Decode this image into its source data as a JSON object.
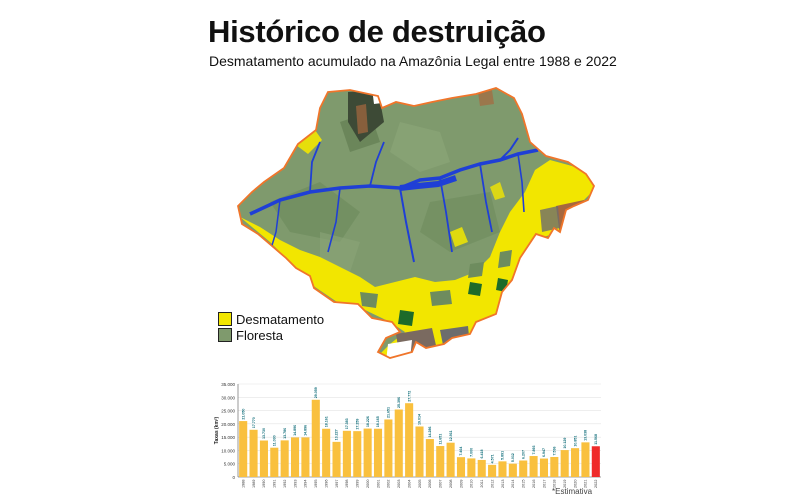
{
  "title": "Histórico de destruição",
  "subtitle": "Desmatamento acumulado na Amazônia Legal entre 1988 e 2022",
  "map": {
    "legend": [
      {
        "label": "Desmatamento",
        "color": "#f2e600"
      },
      {
        "label": "Floresta",
        "color": "#7f9a6d"
      }
    ],
    "colors": {
      "forest": "#7f9a6d",
      "deforestation": "#f2e600",
      "border": "#f0752a",
      "river": "#1f3fd6",
      "non_forest": "#a7683e"
    }
  },
  "chart_data": {
    "type": "bar",
    "ylabel": "Taxas (km²)",
    "ylim": [
      0,
      35000
    ],
    "yticks": [
      "0",
      "5.000",
      "10.000",
      "15.000",
      "20.000",
      "25.000",
      "30.000",
      "35.000"
    ],
    "categories": [
      "1988",
      "1989",
      "1990",
      "1991",
      "1992",
      "1993",
      "1994",
      "1995",
      "1996",
      "1997",
      "1998",
      "1999",
      "2000",
      "2001",
      "2002",
      "2003",
      "2004",
      "2005",
      "2006",
      "2007",
      "2008",
      "2009",
      "2010",
      "2011",
      "2012",
      "2013",
      "2014",
      "2015",
      "2016",
      "2017",
      "2018",
      "2019",
      "2020",
      "2021",
      "2022"
    ],
    "values": [
      21050,
      17770,
      13730,
      11030,
      13786,
      14896,
      14896,
      29059,
      18161,
      13227,
      17383,
      17259,
      18226,
      18165,
      21651,
      25396,
      27772,
      19014,
      14286,
      11651,
      12911,
      7464,
      7000,
      6418,
      4571,
      5891,
      5012,
      6207,
      7893,
      6947,
      7536,
      10129,
      10851,
      13038,
      11568
    ],
    "bar_labels": [
      "21.050",
      "17.770",
      "13.730",
      "11.030",
      "13.786",
      "14.896",
      "14.896",
      "29.059",
      "18.161",
      "13.227",
      "17.383",
      "17.259",
      "18.226",
      "18.165",
      "21.651",
      "25.396",
      "27.772",
      "19.014",
      "14.286",
      "11.651",
      "12.911",
      "7.464",
      "7.000",
      "6.418",
      "4.571",
      "5.891",
      "5.012",
      "6.207",
      "7.893",
      "6.947",
      "7.536",
      "10.129",
      "10.851",
      "13.038",
      "11.568"
    ],
    "bar_color": "#f9c03e",
    "highlight_color": "#ef2b2b",
    "highlight_index": 34,
    "footnote": "*Estimativa"
  }
}
